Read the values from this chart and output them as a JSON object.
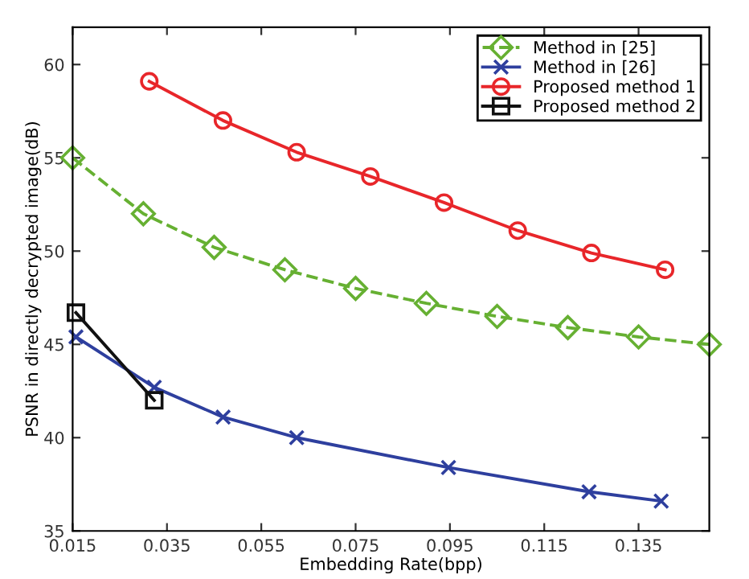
{
  "chart_data": {
    "type": "line",
    "xlabel": "Embedding Rate(bpp)",
    "ylabel": "PSNR in directly decrypted image(dB)",
    "xlim": [
      0.015,
      0.15
    ],
    "ylim": [
      35,
      62
    ],
    "xticks": [
      0.015,
      0.035,
      0.055,
      0.075,
      0.095,
      0.115,
      0.135
    ],
    "yticks": [
      35,
      40,
      45,
      50,
      55,
      60
    ],
    "grid": false,
    "legend": "top right",
    "series": [
      {
        "name": "Method in [25]",
        "color": "#66b032",
        "marker": "diamond",
        "line_style": "dashed",
        "x": [
          0.015,
          0.03,
          0.045,
          0.06,
          0.075,
          0.09,
          0.105,
          0.12,
          0.135,
          0.15
        ],
        "values": [
          55.0,
          52.0,
          50.2,
          49.0,
          48.0,
          47.2,
          46.5,
          45.9,
          45.4,
          45.0
        ]
      },
      {
        "name": "Method in [26]",
        "color": "#2e3f9e",
        "marker": "cross",
        "line_style": "solid",
        "x": [
          0.0157,
          0.0323,
          0.0469,
          0.0625,
          0.0947,
          0.1245,
          0.1398
        ],
        "values": [
          45.4,
          42.7,
          41.1,
          40.0,
          38.4,
          37.1,
          36.6
        ]
      },
      {
        "name": "Proposed method 1",
        "color": "#e8262a",
        "marker": "circle",
        "line_style": "solid",
        "x": [
          0.03125,
          0.046875,
          0.0625,
          0.078125,
          0.09375,
          0.109375,
          0.125,
          0.140625
        ],
        "values": [
          59.1,
          57.0,
          55.3,
          54.0,
          52.6,
          51.1,
          49.9,
          49.0
        ]
      },
      {
        "name": "Proposed method 2",
        "color": "#111111",
        "marker": "square",
        "line_style": "solid",
        "x": [
          0.0157,
          0.0323
        ],
        "values": [
          46.7,
          42.0
        ]
      }
    ]
  }
}
